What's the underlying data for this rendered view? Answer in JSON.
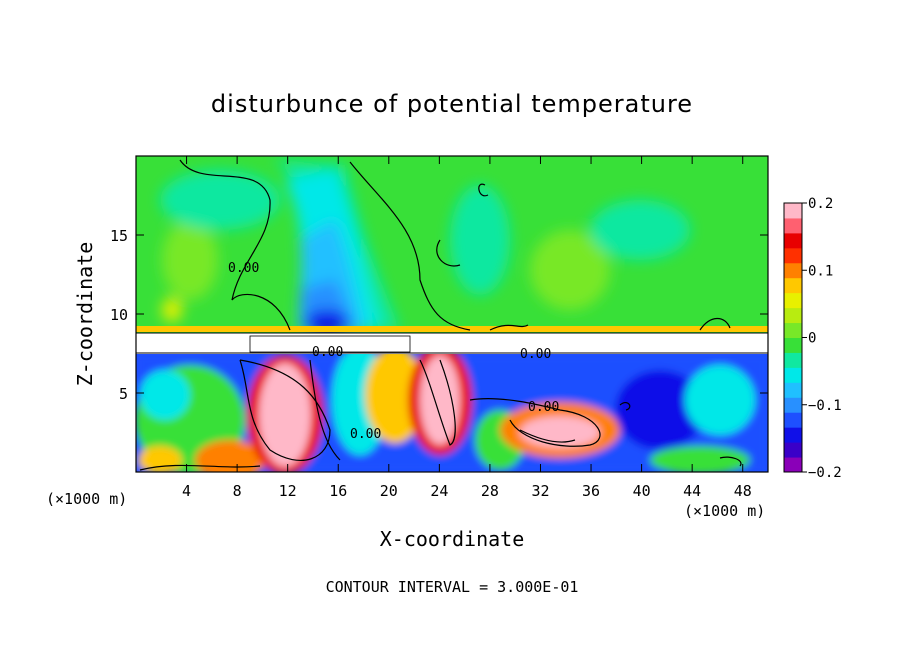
{
  "chart_data": {
    "type": "heatmap",
    "title": "disturbunce of potential temperature",
    "xlabel": "X-coordinate",
    "ylabel": "Z-coordinate",
    "x_unit_label": "(×1000 m)",
    "y_unit_label": "(×1000 m)",
    "xlim": [
      0,
      50
    ],
    "ylim": [
      0,
      20
    ],
    "x_ticks": [
      4,
      8,
      12,
      16,
      20,
      24,
      28,
      32,
      36,
      40,
      44,
      48
    ],
    "y_ticks": [
      5,
      10,
      15
    ],
    "colorbar": {
      "range": [
        -0.2,
        0.2
      ],
      "tick_values": [
        0.2,
        0.1,
        0,
        -0.1,
        -0.2
      ],
      "tick_labels": [
        "0.2",
        "0.1",
        "0",
        "−0.1",
        "−0.2"
      ],
      "colors": [
        "#8a00b8",
        "#3a00c8",
        "#1010e8",
        "#1e50ff",
        "#2890ff",
        "#20c0ff",
        "#00e8e8",
        "#10e8a0",
        "#38e038",
        "#78e828",
        "#b8ec10",
        "#e8f000",
        "#ffc800",
        "#ff8000",
        "#ff3000",
        "#e80000",
        "#ff6070",
        "#ffb8c8"
      ]
    },
    "contour_labels": [
      "0.00",
      "0.00",
      "0.00",
      "0.00",
      "0.00"
    ],
    "contour_interval_text": "CONTOUR INTERVAL = 3.000E-01",
    "background_value": 0,
    "masked_band_z": [
      7.5,
      8.8
    ]
  }
}
